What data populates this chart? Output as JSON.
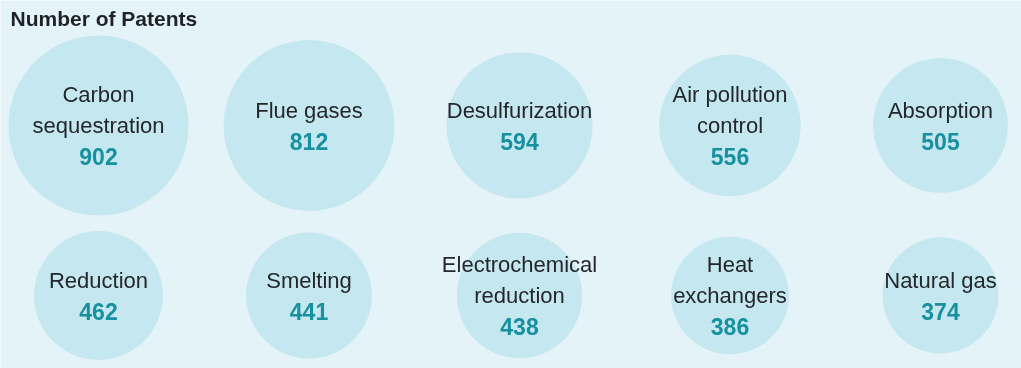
{
  "chart_data": {
    "type": "other",
    "title": "Number of Patents",
    "categories": [
      "Carbon sequestration",
      "Flue gases",
      "Desulfurization",
      "Air pollution control",
      "Absorption",
      "Reduction",
      "Smelting",
      "Electrochemical reduction",
      "Heat exchangers",
      "Natural gas"
    ],
    "values": [
      902,
      812,
      594,
      556,
      505,
      462,
      441,
      438,
      386,
      374
    ],
    "color": "#c5e7ef",
    "data_labels": true
  }
}
